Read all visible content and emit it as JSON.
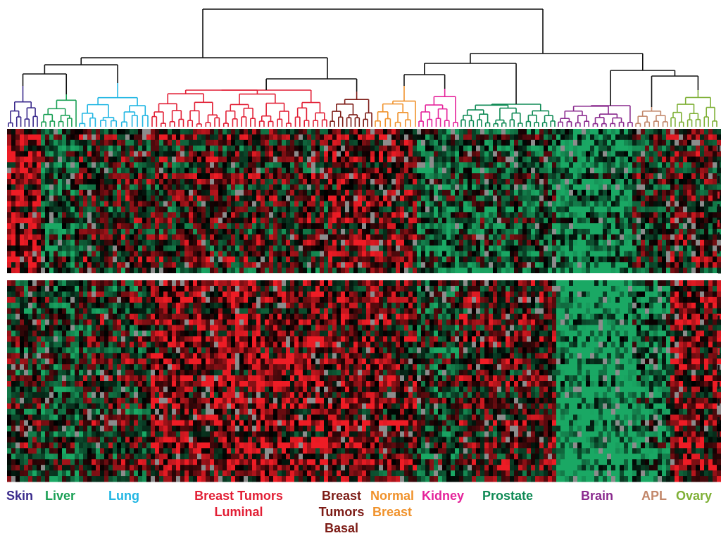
{
  "figure": {
    "background": "#ffffff",
    "heatmap_colors": {
      "high": "#ee1c25",
      "mid": "#000000",
      "low": "#1aa864",
      "missing": "#8c8c8c"
    },
    "divider_color": "#ffffff"
  },
  "clusters": [
    {
      "id": "skin",
      "lines": [
        "Skin"
      ],
      "color": "#3a2a8c"
    },
    {
      "id": "liver",
      "lines": [
        "Liver"
      ],
      "color": "#1aa055"
    },
    {
      "id": "lung",
      "lines": [
        "Lung"
      ],
      "color": "#21b6e3"
    },
    {
      "id": "breast-luminal",
      "lines": [
        "Breast Tumors",
        "Luminal"
      ],
      "color": "#e21f35"
    },
    {
      "id": "breast-basal",
      "lines": [
        "Breast",
        "Tumors",
        "Basal"
      ],
      "color": "#7d1c16"
    },
    {
      "id": "normal-breast",
      "lines": [
        "Normal",
        "Breast"
      ],
      "color": "#f0922b"
    },
    {
      "id": "kidney",
      "lines": [
        "Kidney"
      ],
      "color": "#e5239b"
    },
    {
      "id": "prostate",
      "lines": [
        "Prostate"
      ],
      "color": "#0f8a55"
    },
    {
      "id": "brain",
      "lines": [
        "Brain"
      ],
      "color": "#8a2a8e"
    },
    {
      "id": "apl",
      "lines": [
        "APL"
      ],
      "color": "#c2876a"
    },
    {
      "id": "ovary",
      "lines": [
        "Ovary"
      ],
      "color": "#7fb036"
    }
  ],
  "gene_tick_colors": [
    "#111111",
    "#111111",
    "#111111",
    "#d11f2b",
    "#111111",
    "#d11f2b",
    "#111111",
    "#111111",
    "#111111",
    "#d11f2b",
    "#d11f2b",
    "#111111",
    "#111111",
    "#111111",
    "#111111",
    "#111111"
  ]
}
